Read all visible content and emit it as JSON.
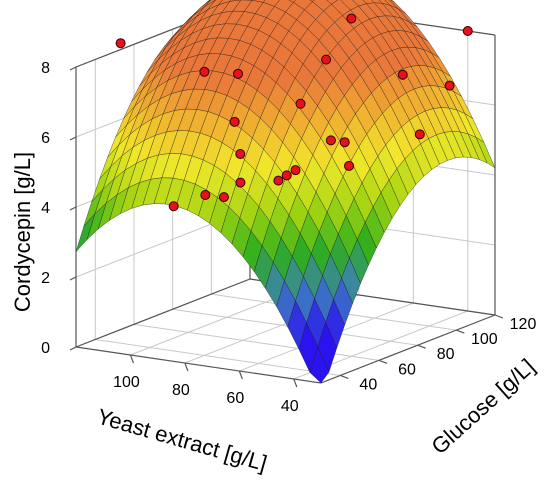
{
  "chart_data": {
    "type": "surface3d",
    "title": "",
    "xlabel": "Yeast extract [g/L]",
    "ylabel": "Glucose [g/L]",
    "zlabel": "Cordycepin [g/L]",
    "xlim": [
      30,
      120
    ],
    "ylim": [
      30,
      120
    ],
    "zlim": [
      0,
      8
    ],
    "x_ticks": [
      40,
      60,
      80,
      100
    ],
    "y_ticks": [
      40,
      60,
      80,
      100,
      120
    ],
    "z_ticks": [
      0,
      2,
      4,
      6,
      8
    ],
    "grid": true,
    "surface_model": {
      "form": "z = b0 + b1*x + b2*y + b11*x^2 + b22*y^2",
      "b0": -13.07,
      "b1": 0.266,
      "b2": 0.239,
      "b11": -0.00154,
      "b22": -0.00125
    },
    "surface_colormap": [
      "#2a13ee",
      "#3e7cc0",
      "#2fae1d",
      "#a6d512",
      "#f1e82b",
      "#f0b030",
      "#e9773a"
    ],
    "observed_points": [
      {
        "x": 110,
        "y": 39,
        "z": 8.6
      },
      {
        "x": 92,
        "y": 57,
        "z": 7.6
      },
      {
        "x": 96,
        "y": 80,
        "z": 7.0
      },
      {
        "x": 75,
        "y": 96,
        "z": 7.3
      },
      {
        "x": 70,
        "y": 102,
        "z": 8.4
      },
      {
        "x": 49,
        "y": 99,
        "z": 7.1
      },
      {
        "x": 40,
        "y": 120,
        "z": 8.0
      },
      {
        "x": 78,
        "y": 87,
        "z": 6.2
      },
      {
        "x": 88,
        "y": 67,
        "z": 6.0
      },
      {
        "x": 98,
        "y": 84,
        "z": 4.6
      },
      {
        "x": 88,
        "y": 70,
        "z": 4.2
      },
      {
        "x": 104,
        "y": 58,
        "z": 3.6
      },
      {
        "x": 104,
        "y": 84,
        "z": 3.3
      },
      {
        "x": 108,
        "y": 80,
        "z": 3.4
      },
      {
        "x": 77,
        "y": 83,
        "z": 4.4
      },
      {
        "x": 84,
        "y": 84,
        "z": 4.0
      },
      {
        "x": 71,
        "y": 70,
        "z": 4.6
      },
      {
        "x": 42,
        "y": 98,
        "z": 5.5
      },
      {
        "x": 41,
        "y": 112,
        "z": 6.6
      },
      {
        "x": 64,
        "y": 83,
        "z": 5.4
      },
      {
        "x": 68,
        "y": 98,
        "z": 4.3
      },
      {
        "x": 71,
        "y": 100,
        "z": 4.9
      }
    ],
    "point_color": "#e8101c"
  }
}
